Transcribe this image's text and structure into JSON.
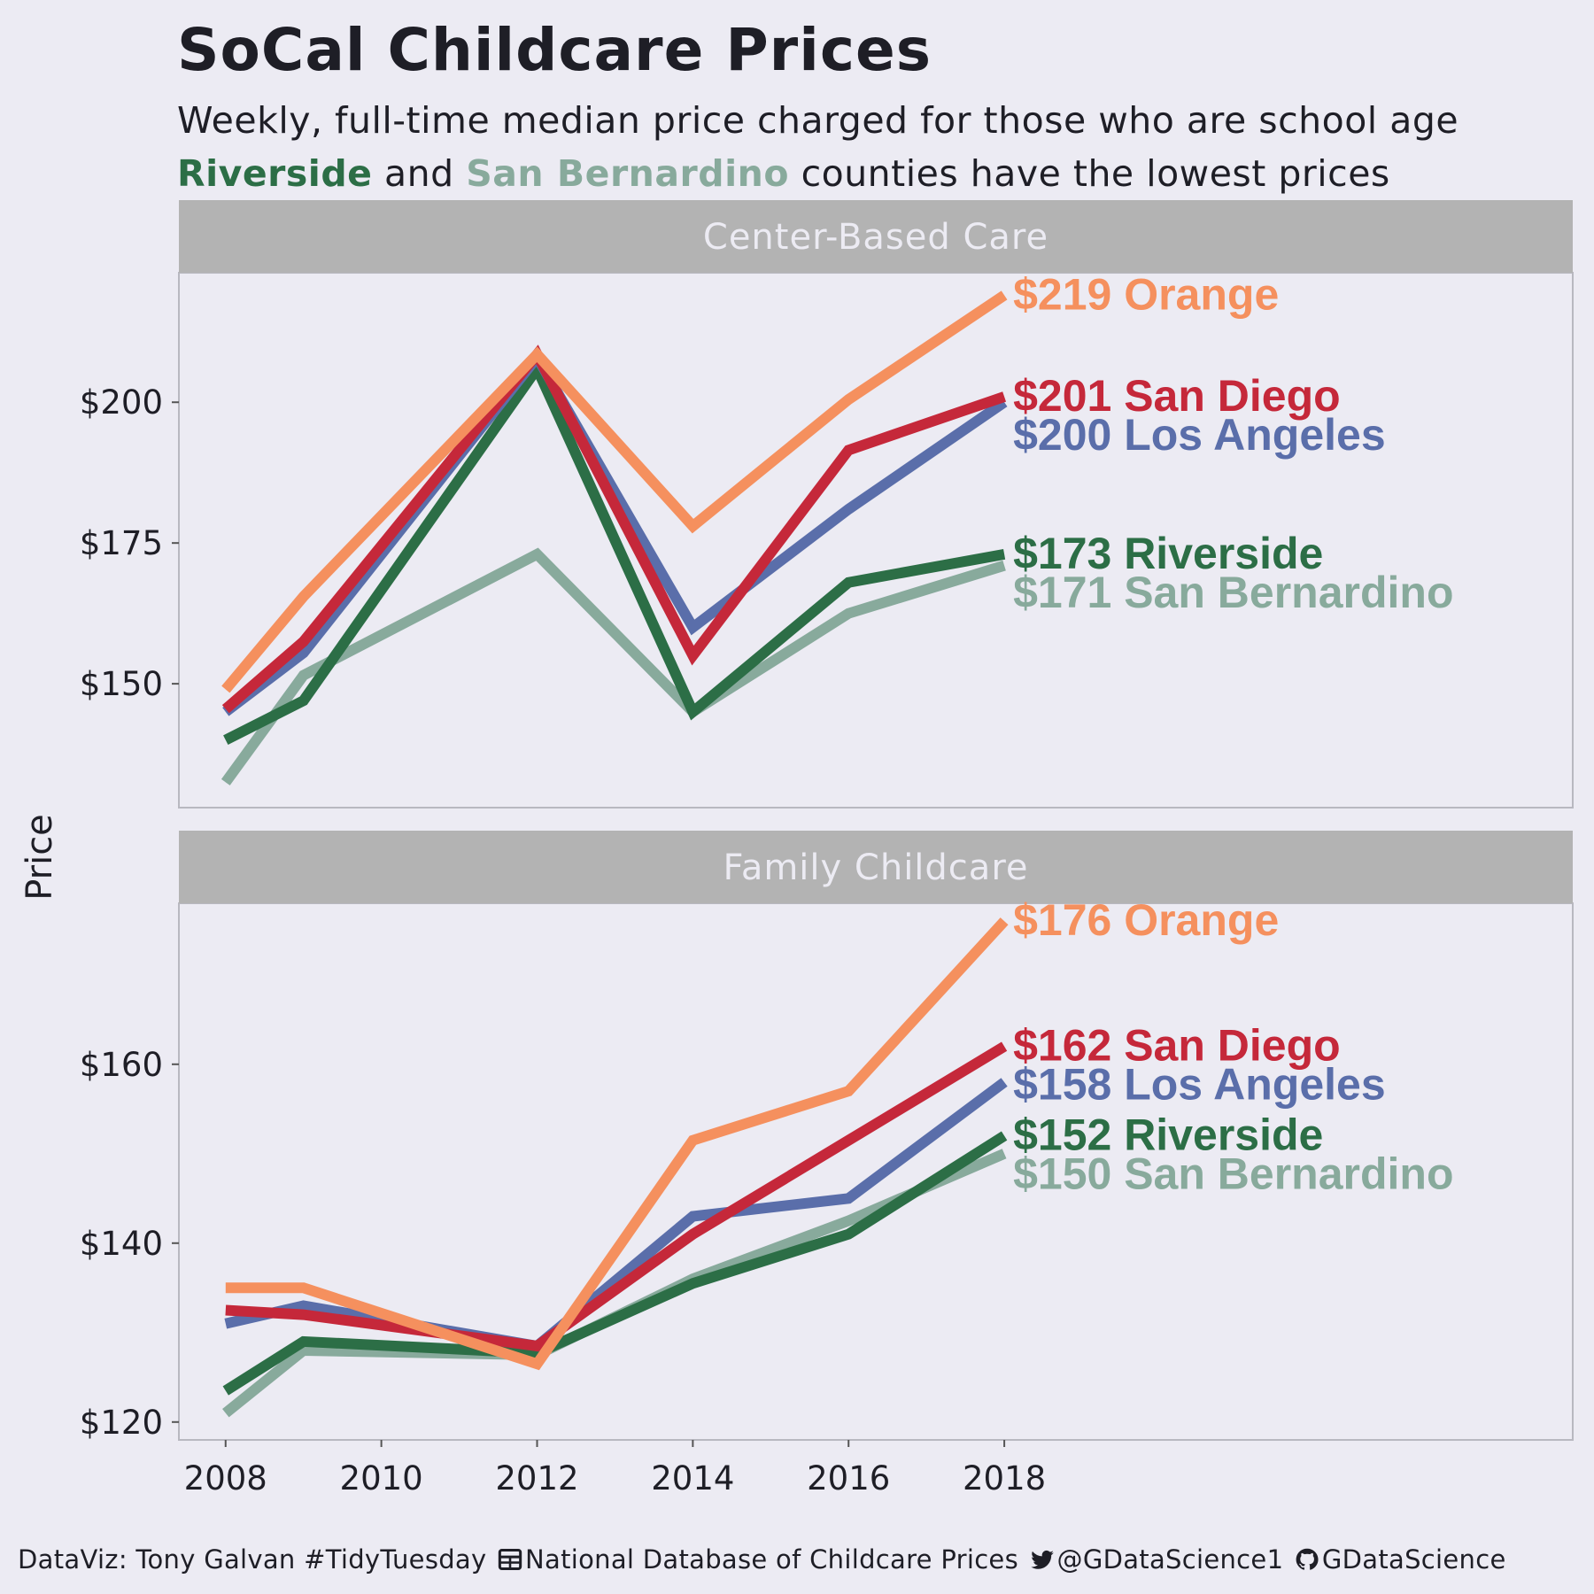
{
  "title": "SoCal Childcare Prices",
  "subtitle": "Weekly, full-time median price charged for those who are school age",
  "subtitle2": {
    "riverside": "Riverside",
    "and": "and",
    "san_bernardino": "San Bernardino",
    "rest": "counties have the lowest prices"
  },
  "caption": {
    "credit": "DataViz: Tony Galvan #TidyTuesday",
    "source": "National Database of Childcare Prices",
    "twitter": "@GDataScience1",
    "github": "GDataScience",
    "icons": [
      "table-icon",
      "twitter-bird-icon",
      "github-icon"
    ]
  },
  "colors": {
    "Orange": "#f5905e",
    "San Diego": "#c5283a",
    "Los Angeles": "#5a6eaa",
    "Riverside": "#2c6e46",
    "San Bernardino": "#88aa9c",
    "background": "#ecebf3",
    "strip": "#b3b3b3",
    "strip_text": "#ecebf3"
  },
  "chart_data": {
    "type": "line",
    "ylabel": "Price",
    "x": [
      2008,
      2009,
      2012,
      2014,
      2016,
      2018
    ],
    "x_ticks": [
      "2008",
      "2010",
      "2012",
      "2014",
      "2016",
      "2018"
    ],
    "facets": [
      {
        "label": "Center-Based Care",
        "ylim": [
          128,
          223
        ],
        "y_ticks": [
          150,
          175,
          200
        ],
        "y_tick_labels": [
          "$150",
          "$175",
          "$200"
        ],
        "series": [
          {
            "name": "San Bernardino",
            "values": [
              132.5,
              151.5,
              173,
              145,
              162.5,
              171
            ],
            "end_label": "$171 San Bernardino"
          },
          {
            "name": "Riverside",
            "values": [
              140,
              147,
              206,
              145,
              168,
              173
            ],
            "end_label": "$173 Riverside"
          },
          {
            "name": "Los Angeles",
            "values": [
              145,
              155.5,
              208,
              160,
              181,
              200
            ],
            "end_label": "$200 Los Angeles"
          },
          {
            "name": "San Diego",
            "values": [
              145.5,
              157.5,
              208.5,
              155,
              191.5,
              201
            ],
            "end_label": "$201 San Diego"
          },
          {
            "name": "Orange",
            "values": [
              149,
              165.5,
              208.5,
              178,
              200.5,
              219
            ],
            "end_label": "$219 Orange"
          }
        ]
      },
      {
        "label": "Family Childcare",
        "ylim": [
          118,
          178
        ],
        "y_ticks": [
          120,
          140,
          160
        ],
        "y_tick_labels": [
          "$120",
          "$140",
          "$160"
        ],
        "series": [
          {
            "name": "San Bernardino",
            "values": [
              121,
              128,
              127.5,
              136,
              142.5,
              150
            ],
            "end_label": "$150 San Bernardino"
          },
          {
            "name": "Riverside",
            "values": [
              123.5,
              129,
              127.7,
              135.5,
              141,
              152
            ],
            "end_label": "$152 Riverside"
          },
          {
            "name": "Los Angeles",
            "values": [
              131,
              133,
              128.5,
              143,
              145,
              158
            ],
            "end_label": "$158 Los Angeles"
          },
          {
            "name": "San Diego",
            "values": [
              132.5,
              132,
              128.5,
              141,
              151.5,
              162
            ],
            "end_label": "$162 San Diego"
          },
          {
            "name": "Orange",
            "values": [
              135,
              135,
              126.5,
              151.5,
              157,
              176
            ],
            "end_label": "$176 Orange"
          }
        ]
      }
    ]
  }
}
